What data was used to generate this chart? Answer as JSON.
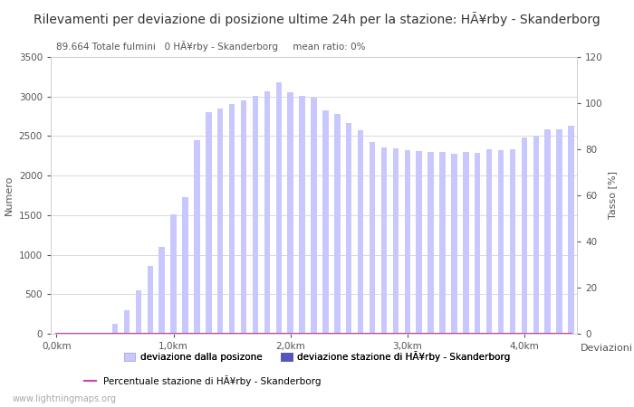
{
  "title": "Rilevamenti per deviazione di posizione ultime 24h per la stazione: HÃ¥rby - Skanderborg",
  "subtitle": "89.664 Totale fulmini   0 HÃ¥rby - Skanderborg     mean ratio: 0%",
  "ylabel_left": "Numero",
  "ylabel_right": "Tasso [%]",
  "xlabel_right": "Deviazioni",
  "legend_labels": [
    "deviazione dalla posizone",
    "deviazione stazione di HÃ¥rby - Skanderborg",
    "Percentuale stazione di HÃ¥rby - Skanderborg"
  ],
  "watermark": "www.lightningmaps.org",
  "ylim_left": [
    0,
    3500
  ],
  "ylim_right": [
    0,
    120
  ],
  "xtick_labels": [
    "0,0km",
    "1,0km",
    "2,0km",
    "3,0km",
    "4,0km"
  ],
  "xtick_positions": [
    0,
    10,
    20,
    30,
    40
  ],
  "bar_width": 0.5,
  "bar_positions": [
    0,
    1,
    2,
    3,
    4,
    5,
    6,
    7,
    8,
    9,
    10,
    11,
    12,
    13,
    14,
    15,
    16,
    17,
    18,
    19,
    20,
    21,
    22,
    23,
    24,
    25,
    26,
    27,
    28,
    29,
    30,
    31,
    32,
    33,
    34,
    35,
    36,
    37,
    38,
    39,
    40,
    41,
    42,
    43,
    44
  ],
  "bar_heights_light": [
    0,
    0,
    0,
    0,
    0,
    130,
    300,
    550,
    860,
    1100,
    1510,
    1730,
    2450,
    2800,
    2850,
    2900,
    2950,
    3010,
    3060,
    3180,
    3050,
    3010,
    2980,
    2830,
    2780,
    2660,
    2570,
    2420,
    2360,
    2340,
    2320,
    2310,
    2300,
    2300,
    2280,
    2300,
    2290,
    2330,
    2320,
    2330,
    2480,
    2510,
    2590,
    2590,
    2630
  ],
  "bar_heights_dark": [
    0,
    0,
    0,
    0,
    0,
    0,
    0,
    0,
    0,
    0,
    0,
    0,
    0,
    0,
    0,
    0,
    0,
    0,
    0,
    0,
    0,
    0,
    0,
    0,
    0,
    0,
    0,
    0,
    0,
    0,
    0,
    0,
    0,
    0,
    0,
    0,
    0,
    0,
    0,
    0,
    0,
    0,
    0,
    0,
    0
  ],
  "ratio_values": [
    0,
    0,
    0,
    0,
    0,
    0,
    0,
    0,
    0,
    0,
    0,
    0,
    0,
    0,
    0,
    0,
    0,
    0,
    0,
    0,
    0,
    0,
    0,
    0,
    0,
    0,
    0,
    0,
    0,
    0,
    0,
    0,
    0,
    0,
    0,
    0,
    0,
    0,
    0,
    0,
    0,
    0,
    0,
    0,
    0
  ],
  "light_bar_color": "#c8c8ff",
  "dark_bar_color": "#5555bb",
  "line_color": "#cc44aa",
  "grid_color": "#cccccc",
  "background_color": "#ffffff",
  "title_fontsize": 10,
  "subtitle_fontsize": 7.5,
  "axis_label_fontsize": 8,
  "tick_fontsize": 7.5,
  "legend_fontsize": 7.5
}
